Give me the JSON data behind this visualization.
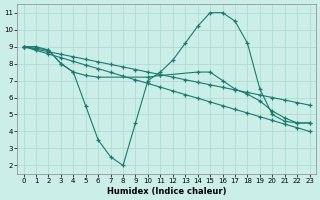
{
  "color": "#1a7a6e",
  "bg_color": "#cceee8",
  "grid_color": "#aad8d0",
  "xlabel": "Humidex (Indice chaleur)",
  "xlim": [
    -0.5,
    23.5
  ],
  "ylim": [
    1.5,
    11.5
  ],
  "xticks": [
    0,
    1,
    2,
    3,
    4,
    5,
    6,
    7,
    8,
    9,
    10,
    11,
    12,
    13,
    14,
    15,
    16,
    17,
    18,
    19,
    20,
    21,
    22,
    23
  ],
  "yticks": [
    2,
    3,
    4,
    5,
    6,
    7,
    8,
    9,
    10,
    11
  ],
  "line1_x": [
    0,
    1,
    2,
    3,
    4,
    5,
    6,
    7,
    8,
    9,
    10,
    11,
    12,
    13,
    14,
    15,
    16,
    17,
    18,
    19,
    20,
    21,
    22,
    23
  ],
  "line1_y": [
    9,
    9,
    8.8,
    8.0,
    7.5,
    5.5,
    3.5,
    2.5,
    2.0,
    4.5,
    7.0,
    7.5,
    8.2,
    9.2,
    10.2,
    11.0,
    11.0,
    10.5,
    9.2,
    6.5,
    5.0,
    4.6,
    4.5,
    4.5
  ],
  "line2_x": [
    0,
    1,
    2,
    3,
    4,
    5,
    6,
    7,
    8,
    9,
    10,
    11,
    12,
    13,
    14,
    15,
    16,
    17,
    18,
    19,
    20,
    21,
    22,
    23
  ],
  "line2_y": [
    9,
    8.85,
    8.7,
    8.55,
    8.4,
    8.25,
    8.1,
    7.95,
    7.8,
    7.65,
    7.5,
    7.35,
    7.2,
    7.05,
    6.9,
    6.75,
    6.6,
    6.45,
    6.3,
    6.15,
    6.0,
    5.85,
    5.7,
    5.55
  ],
  "line3_x": [
    0,
    1,
    2,
    3,
    4,
    5,
    6,
    7,
    8,
    9,
    10,
    11,
    12,
    13,
    14,
    15,
    16,
    17,
    18,
    19,
    20,
    21,
    22,
    23
  ],
  "line3_y": [
    9,
    8.78,
    8.57,
    8.35,
    8.13,
    7.91,
    7.7,
    7.48,
    7.26,
    7.04,
    6.83,
    6.61,
    6.39,
    6.17,
    5.96,
    5.74,
    5.52,
    5.3,
    5.09,
    4.87,
    4.65,
    4.43,
    4.22,
    4.0
  ],
  "line4_x": [
    0,
    2,
    3,
    4,
    5,
    6,
    10,
    11,
    14,
    15,
    16,
    17,
    18,
    19,
    20,
    21,
    22,
    23
  ],
  "line4_y": [
    9,
    8.8,
    8.0,
    7.5,
    7.3,
    7.2,
    7.2,
    7.3,
    7.5,
    7.5,
    7.0,
    6.5,
    6.2,
    5.8,
    5.2,
    4.8,
    4.5,
    4.5
  ]
}
